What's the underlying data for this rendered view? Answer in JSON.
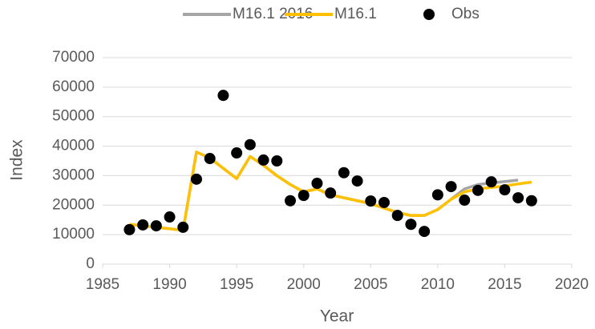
{
  "chart_data": {
    "type": "line",
    "x": [
      1987,
      1988,
      1989,
      1990,
      1991,
      1992,
      1993,
      1994,
      1995,
      1996,
      1997,
      1998,
      1999,
      2000,
      2001,
      2002,
      2003,
      2004,
      2005,
      2006,
      2007,
      2008,
      2009,
      2010,
      2011,
      2012,
      2013,
      2014,
      2015,
      2016,
      2017
    ],
    "series": [
      {
        "name": "M16.1 2016",
        "color": "#a5a5a5",
        "kind": "line",
        "values": [
          13500,
          13000,
          12500,
          12000,
          11500,
          38000,
          36000,
          32500,
          29000,
          36500,
          33500,
          30000,
          27000,
          24500,
          25500,
          23500,
          22500,
          21500,
          20500,
          19000,
          17500,
          16500,
          16500,
          18500,
          22000,
          25500,
          27000,
          27500,
          28000,
          28500,
          null
        ]
      },
      {
        "name": "M16.1",
        "color": "#ffc000",
        "kind": "line",
        "values": [
          13500,
          13000,
          12500,
          12000,
          11500,
          38000,
          36000,
          32500,
          29000,
          36500,
          33500,
          30000,
          27000,
          24500,
          25500,
          23500,
          22500,
          21500,
          20500,
          19000,
          17500,
          16500,
          16500,
          18500,
          22000,
          24500,
          25500,
          26000,
          26500,
          27200,
          27800
        ]
      },
      {
        "name": "Obs",
        "color": "#000000",
        "kind": "scatter",
        "values": [
          11700,
          13300,
          13000,
          16000,
          12500,
          28800,
          35800,
          57200,
          37700,
          40500,
          35300,
          35000,
          21500,
          23300,
          27400,
          24100,
          31000,
          28200,
          21400,
          20900,
          16500,
          13500,
          11100,
          23500,
          26300,
          21700,
          25000,
          27900,
          25200,
          22500,
          21500
        ]
      }
    ],
    "xlabel": "Year",
    "ylabel": "Index",
    "xlim": [
      1985,
      2020
    ],
    "xticks": [
      1985,
      1990,
      1995,
      2000,
      2005,
      2010,
      2015,
      2020
    ],
    "ylim": [
      0,
      70000
    ],
    "yticks": [
      0,
      10000,
      20000,
      30000,
      40000,
      50000,
      60000,
      70000
    ],
    "grid": true,
    "legend": "top"
  }
}
